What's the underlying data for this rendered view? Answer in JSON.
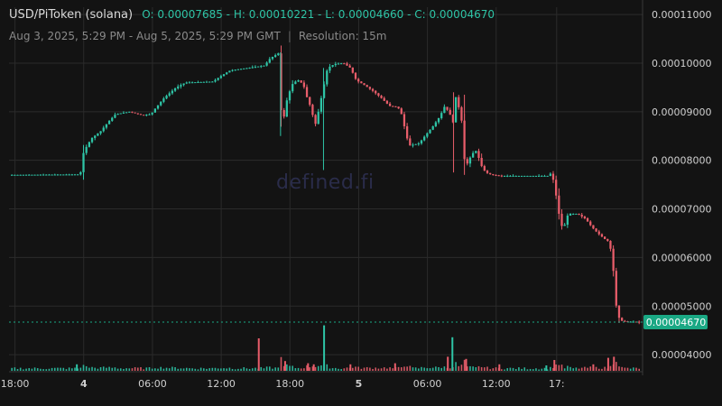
{
  "header": {
    "symbol": "USD/PiToken (solana)",
    "ohlc": "O: 0.00007685 - H: 0.00010221 - L: 0.00004660 - C: 0.00004670",
    "range": "Aug 3, 2025, 5:29 PM - Aug 5, 2025, 5:29 PM GMT",
    "separator": "|",
    "resolution": "Resolution: 15m"
  },
  "watermark": "defined.fi",
  "colors": {
    "up": "#2ec4a6",
    "down": "#e85d6a",
    "background": "#131313",
    "grid": "#2b2b2b",
    "axis_text": "#d0d0d0",
    "price_tag": "#1aa884"
  },
  "chart_data": {
    "type": "candlestick",
    "resolution": "15m",
    "y_axis": {
      "ticks": [
        "0.00011000",
        "0.00010000",
        "0.00009000",
        "0.00008000",
        "0.00007000",
        "0.00006000",
        "0.00005000",
        "0.00004000"
      ],
      "ylim": [
        3.65e-05,
        0.0001115
      ]
    },
    "x_axis": {
      "ticks": [
        "18:00",
        "4",
        "06:00",
        "12:00",
        "18:00",
        "5",
        "06:00",
        "12:00",
        "17:"
      ],
      "tick_hours": [
        0.52,
        6.52,
        12.52,
        18.52,
        24.52,
        30.52,
        36.52,
        42.52,
        47.8
      ]
    },
    "last_price": "0.00004670",
    "last_value": 4.67e-05,
    "grid": true,
    "price_path": [
      [
        0,
        7.7e-05
      ],
      [
        6.2,
        7.71e-05
      ],
      [
        6.3,
        7.8e-05
      ],
      [
        6.5,
        8.15e-05
      ],
      [
        6.8,
        8.3e-05
      ],
      [
        7.2,
        8.45e-05
      ],
      [
        8.0,
        8.6e-05
      ],
      [
        8.7,
        8.8e-05
      ],
      [
        9.3,
        8.95e-05
      ],
      [
        10.5,
        9e-05
      ],
      [
        11.6,
        8.93e-05
      ],
      [
        12.4,
        8.95e-05
      ],
      [
        12.7,
        9.05e-05
      ],
      [
        13.6,
        9.3e-05
      ],
      [
        14.6,
        9.5e-05
      ],
      [
        15.4,
        9.6e-05
      ],
      [
        17.8,
        9.62e-05
      ],
      [
        18.6,
        9.75e-05
      ],
      [
        19.3,
        9.85e-05
      ],
      [
        20.8,
        9.9e-05
      ],
      [
        22.3,
        9.95e-05
      ],
      [
        22.8,
        0.000101
      ],
      [
        23.5,
        0.000102
      ],
      [
        23.8,
        8.8e-05
      ],
      [
        24.0,
        8.9e-05
      ],
      [
        24.3,
        9.3e-05
      ],
      [
        24.8,
        9.6e-05
      ],
      [
        25.3,
        9.65e-05
      ],
      [
        25.7,
        9.55e-05
      ],
      [
        26.0,
        9.3e-05
      ],
      [
        26.4,
        9.05e-05
      ],
      [
        26.7,
        8.7e-05
      ],
      [
        27.0,
        9e-05
      ],
      [
        27.4,
        9.45e-05
      ],
      [
        27.8,
        9.9e-05
      ],
      [
        28.4,
        9.98e-05
      ],
      [
        29.2,
        0.0001
      ],
      [
        29.8,
        9.9e-05
      ],
      [
        30.3,
        9.65e-05
      ],
      [
        31.0,
        9.55e-05
      ],
      [
        31.8,
        9.42e-05
      ],
      [
        32.5,
        9.28e-05
      ],
      [
        33.2,
        9.12e-05
      ],
      [
        33.9,
        9.1e-05
      ],
      [
        34.2,
        9e-05
      ],
      [
        34.6,
        8.6e-05
      ],
      [
        34.9,
        8.3e-05
      ],
      [
        35.8,
        8.35e-05
      ],
      [
        36.3,
        8.5e-05
      ],
      [
        37.0,
        8.7e-05
      ],
      [
        37.6,
        8.9e-05
      ],
      [
        38.0,
        9.1e-05
      ],
      [
        38.4,
        9e-05
      ],
      [
        38.8,
        8.75e-05
      ],
      [
        39.0,
        9.3e-05
      ],
      [
        39.3,
        9.05e-05
      ],
      [
        39.6,
        8.7e-05
      ],
      [
        39.8,
        7.8e-05
      ],
      [
        40.1,
        8e-05
      ],
      [
        40.5,
        8.15e-05
      ],
      [
        40.8,
        8.2e-05
      ],
      [
        41.2,
        7.9e-05
      ],
      [
        41.6,
        7.75e-05
      ],
      [
        42.2,
        7.7e-05
      ],
      [
        43.0,
        7.68e-05
      ],
      [
        44.8,
        7.68e-05
      ],
      [
        47.0,
        7.68e-05
      ],
      [
        47.4,
        7.75e-05
      ],
      [
        47.6,
        7.45e-05
      ],
      [
        47.9,
        7.1e-05
      ],
      [
        48.1,
        6.7e-05
      ],
      [
        48.4,
        6.6e-05
      ],
      [
        48.8,
        6.9e-05
      ],
      [
        49.6,
        6.9e-05
      ],
      [
        50.3,
        6.8e-05
      ],
      [
        50.9,
        6.62e-05
      ],
      [
        51.4,
        6.5e-05
      ],
      [
        52.0,
        6.38e-05
      ],
      [
        52.4,
        6.32e-05
      ],
      [
        52.7,
        5.9e-05
      ],
      [
        52.9,
        5.2e-05
      ],
      [
        53.1,
        4.82e-05
      ],
      [
        53.4,
        4.7e-05
      ],
      [
        54.0,
        4.68e-05
      ],
      [
        54.7,
        4.68e-05
      ],
      [
        55.0,
        4.67e-05
      ]
    ],
    "volume_spikes": [
      [
        5.92,
        0.12,
        "up"
      ],
      [
        21.8,
        0.6,
        "down"
      ],
      [
        24.1,
        0.18,
        "down"
      ],
      [
        27.5,
        0.84,
        "up"
      ],
      [
        26.1,
        0.14,
        "down"
      ],
      [
        26.6,
        0.12,
        "down"
      ],
      [
        38.7,
        0.62,
        "up"
      ],
      [
        38.3,
        0.26,
        "down"
      ],
      [
        39.9,
        0.22,
        "down"
      ],
      [
        46.9,
        0.1,
        "up"
      ],
      [
        47.6,
        0.2,
        "down"
      ],
      [
        51.0,
        0.12,
        "down"
      ],
      [
        52.3,
        0.24,
        "down"
      ],
      [
        52.8,
        0.26,
        "down"
      ],
      [
        33.7,
        0.14,
        "down"
      ],
      [
        29.8,
        0.12,
        "down"
      ],
      [
        42.8,
        0.12,
        "down"
      ]
    ]
  }
}
